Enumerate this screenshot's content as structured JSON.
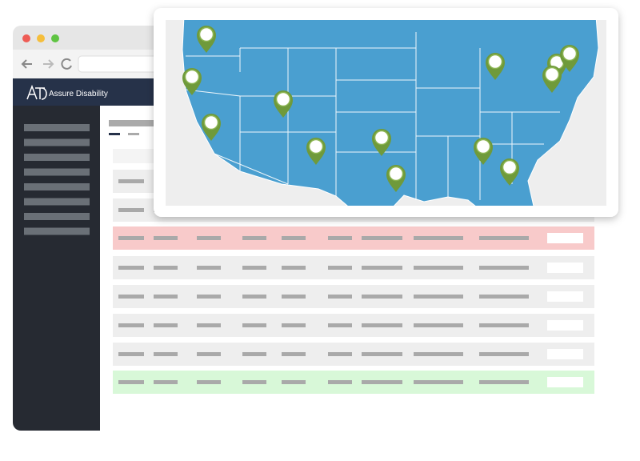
{
  "header": {
    "brand": "Assure Disability"
  }
}
